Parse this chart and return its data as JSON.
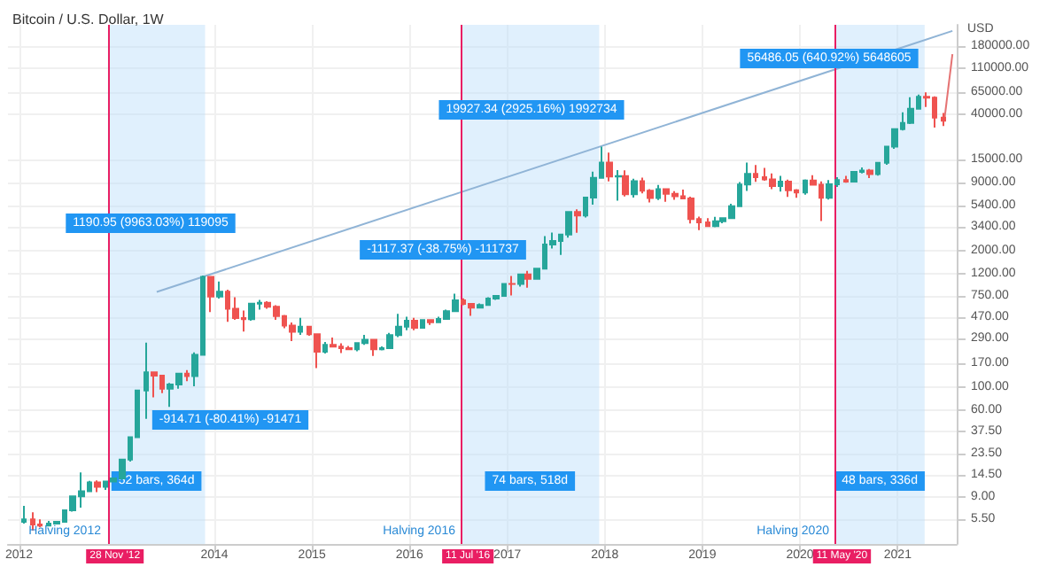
{
  "chart_data": {
    "type": "candlestick",
    "title": "Bitcoin / U.S. Dollar, 1W",
    "ylabel": "USD",
    "x": [
      "2012-01-20",
      "2012-02-20",
      "2012-03-20",
      "2012-04-20",
      "2012-05-20",
      "2012-06-20",
      "2012-07-20",
      "2012-08-20",
      "2012-09-20",
      "2012-10-20",
      "2012-11-20",
      "2012-12-20",
      "2013-01-20",
      "2013-02-20",
      "2013-03-20",
      "2013-04-20",
      "2013-05-20",
      "2013-06-20",
      "2013-07-20",
      "2013-08-20",
      "2013-09-20",
      "2013-10-20",
      "2013-11-20",
      "2013-12-20",
      "2014-01-20",
      "2014-02-20",
      "2014-03-20",
      "2014-04-20",
      "2014-05-20",
      "2014-06-20",
      "2014-07-20",
      "2014-08-20",
      "2014-09-20",
      "2014-10-20",
      "2014-11-20",
      "2014-12-20",
      "2015-01-20",
      "2015-02-20",
      "2015-03-20",
      "2015-04-20",
      "2015-05-20",
      "2015-06-20",
      "2015-07-20",
      "2015-08-20",
      "2015-09-20",
      "2015-10-20",
      "2015-11-20",
      "2015-12-20",
      "2016-01-20",
      "2016-02-20",
      "2016-03-20",
      "2016-04-20",
      "2016-05-20",
      "2016-06-20",
      "2016-07-20",
      "2016-08-20",
      "2016-09-20",
      "2016-10-20",
      "2016-11-20",
      "2016-12-20",
      "2017-01-20",
      "2017-02-20",
      "2017-03-20",
      "2017-04-20",
      "2017-05-20",
      "2017-06-20",
      "2017-07-20",
      "2017-08-20",
      "2017-09-20",
      "2017-10-20",
      "2017-11-20",
      "2017-12-20",
      "2018-01-20",
      "2018-02-20",
      "2018-03-20",
      "2018-04-20",
      "2018-05-20",
      "2018-06-20",
      "2018-07-20",
      "2018-08-20",
      "2018-09-20",
      "2018-10-20",
      "2018-11-20",
      "2018-12-20",
      "2019-01-20",
      "2019-02-20",
      "2019-03-20",
      "2019-04-20",
      "2019-05-20",
      "2019-06-20",
      "2019-07-20",
      "2019-08-20",
      "2019-09-20",
      "2019-10-20",
      "2019-11-20",
      "2019-12-20",
      "2020-01-20",
      "2020-02-20",
      "2020-03-20",
      "2020-04-20",
      "2020-05-20",
      "2020-06-20",
      "2020-07-20",
      "2020-08-20",
      "2020-09-20",
      "2020-10-20",
      "2020-11-20",
      "2020-12-20",
      "2021-01-20",
      "2021-02-20",
      "2021-03-20",
      "2021-04-20",
      "2021-05-20",
      "2021-06-20"
    ],
    "ohlc": [
      [
        5.2,
        7.4,
        5.0,
        5.5
      ],
      [
        5.5,
        6.4,
        4.3,
        4.9
      ],
      [
        4.9,
        5.5,
        4.6,
        4.8
      ],
      [
        4.8,
        5.3,
        4.7,
        5.0
      ],
      [
        5.0,
        5.2,
        4.9,
        5.2
      ],
      [
        5.2,
        6.8,
        5.1,
        6.7
      ],
      [
        6.7,
        9.2,
        6.5,
        9.1
      ],
      [
        9.1,
        15.4,
        7.1,
        10.2
      ],
      [
        10.2,
        12.8,
        10.0,
        12.4
      ],
      [
        12.4,
        12.9,
        10.0,
        11.2
      ],
      [
        11.2,
        12.8,
        10.5,
        12.6
      ],
      [
        12.6,
        13.8,
        12.4,
        13.5
      ],
      [
        13.5,
        20.8,
        13.2,
        20.4
      ],
      [
        20.4,
        33.5,
        19.5,
        33.4
      ],
      [
        33.4,
        95,
        33,
        93
      ],
      [
        93,
        266,
        50,
        139
      ],
      [
        139,
        140,
        80,
        129
      ],
      [
        129,
        130,
        88,
        97
      ],
      [
        97,
        110,
        65,
        106
      ],
      [
        106,
        136,
        97,
        135
      ],
      [
        135,
        146,
        114,
        128
      ],
      [
        128,
        215,
        102,
        204
      ],
      [
        204,
        1163,
        200,
        1129
      ],
      [
        1129,
        1152,
        520,
        732
      ],
      [
        732,
        1020,
        700,
        815
      ],
      [
        815,
        850,
        420,
        560
      ],
      [
        560,
        720,
        440,
        457
      ],
      [
        457,
        540,
        340,
        445
      ],
      [
        445,
        630,
        430,
        628
      ],
      [
        628,
        680,
        550,
        640
      ],
      [
        640,
        660,
        560,
        585
      ],
      [
        585,
        605,
        440,
        478
      ],
      [
        478,
        490,
        365,
        388
      ],
      [
        388,
        415,
        275,
        338
      ],
      [
        338,
        460,
        315,
        378
      ],
      [
        378,
        385,
        310,
        320
      ],
      [
        320,
        320,
        152,
        218
      ],
      [
        218,
        270,
        210,
        254
      ],
      [
        254,
        298,
        240,
        244
      ],
      [
        244,
        262,
        212,
        236
      ],
      [
        236,
        247,
        227,
        230
      ],
      [
        230,
        268,
        220,
        263
      ],
      [
        263,
        315,
        253,
        284
      ],
      [
        284,
        285,
        199,
        230
      ],
      [
        230,
        245,
        225,
        236
      ],
      [
        236,
        330,
        235,
        314
      ],
      [
        314,
        500,
        300,
        377
      ],
      [
        377,
        470,
        350,
        430
      ],
      [
        430,
        460,
        350,
        368
      ],
      [
        368,
        445,
        365,
        437
      ],
      [
        437,
        440,
        393,
        416
      ],
      [
        416,
        470,
        415,
        448
      ],
      [
        448,
        550,
        440,
        531
      ],
      [
        531,
        780,
        530,
        673
      ],
      [
        673,
        705,
        605,
        624
      ],
      [
        624,
        625,
        480,
        575
      ],
      [
        575,
        630,
        570,
        609
      ],
      [
        609,
        720,
        605,
        700
      ],
      [
        700,
        755,
        680,
        742
      ],
      [
        742,
        975,
        740,
        966
      ],
      [
        966,
        1150,
        750,
        965
      ],
      [
        965,
        1200,
        910,
        1190
      ],
      [
        1190,
        1290,
        890,
        1080
      ],
      [
        1080,
        1350,
        1060,
        1348
      ],
      [
        1348,
        2760,
        1340,
        2300
      ],
      [
        2300,
        2990,
        2100,
        2480
      ],
      [
        2480,
        2920,
        1830,
        2860
      ],
      [
        2860,
        4750,
        2670,
        4700
      ],
      [
        4700,
        4980,
        2970,
        4340
      ],
      [
        4340,
        6470,
        4160,
        6440
      ],
      [
        6440,
        11400,
        5500,
        9950
      ],
      [
        9950,
        19670,
        9900,
        13860
      ],
      [
        13860,
        17250,
        9200,
        10220
      ],
      [
        10220,
        11790,
        6000,
        10320
      ],
      [
        10320,
        11700,
        6600,
        6930
      ],
      [
        6930,
        9750,
        6430,
        9240
      ],
      [
        9240,
        9990,
        7060,
        7500
      ],
      [
        7500,
        7760,
        5780,
        6390
      ],
      [
        6390,
        8500,
        6090,
        7730
      ],
      [
        7730,
        7760,
        5880,
        7000
      ],
      [
        7000,
        7400,
        6120,
        6620
      ],
      [
        6620,
        7680,
        6200,
        6300
      ],
      [
        6300,
        6570,
        3650,
        4020
      ],
      [
        4020,
        4240,
        3150,
        3740
      ],
      [
        3740,
        4100,
        3370,
        3440
      ],
      [
        3440,
        4220,
        3350,
        3820
      ],
      [
        3820,
        4130,
        3670,
        4100
      ],
      [
        4100,
        5620,
        4090,
        5330
      ],
      [
        5330,
        9070,
        5320,
        8570
      ],
      [
        8570,
        13880,
        7450,
        10820
      ],
      [
        10820,
        13180,
        9080,
        10090
      ],
      [
        10090,
        12330,
        9330,
        9600
      ],
      [
        9600,
        10950,
        7730,
        8300
      ],
      [
        8300,
        10370,
        7330,
        9150
      ],
      [
        9150,
        9540,
        6520,
        7550
      ],
      [
        7550,
        7760,
        6420,
        7190
      ],
      [
        7190,
        9580,
        6860,
        9350
      ],
      [
        9350,
        10500,
        8440,
        8530
      ],
      [
        8530,
        9190,
        3850,
        6410
      ],
      [
        6410,
        9460,
        6150,
        8630
      ],
      [
        8630,
        10080,
        8120,
        9450
      ],
      [
        9450,
        10380,
        8920,
        9140
      ],
      [
        9140,
        11450,
        8960,
        11340
      ],
      [
        11340,
        12480,
        10960,
        11650
      ],
      [
        11650,
        12080,
        9880,
        10780
      ],
      [
        10780,
        14070,
        10410,
        13800
      ],
      [
        13800,
        19860,
        13200,
        19700
      ],
      [
        19700,
        29300,
        18760,
        28990
      ],
      [
        28990,
        41950,
        28130,
        33140
      ],
      [
        33140,
        58350,
        32300,
        45170
      ],
      [
        45170,
        61790,
        44960,
        58800
      ],
      [
        58800,
        64900,
        47050,
        57750
      ],
      [
        57750,
        59500,
        30000,
        37300
      ],
      [
        37300,
        41300,
        31000,
        34895
      ]
    ],
    "series": [
      {
        "type": "line",
        "color": "#90b4d6",
        "x": [
          "2013-05-30",
          "2021-07-25"
        ],
        "values": [
          810,
          250000
        ]
      },
      {
        "type": "line",
        "color": "#e57373",
        "x": [
          "2021-06-25",
          "2021-07-25"
        ],
        "values": [
          35600,
          150000
        ]
      }
    ],
    "log": "y",
    "grid": true,
    "xlim": [
      "2011-11-20",
      "2021-08-10"
    ],
    "xticks": [
      {
        "value": "2012",
        "label": "2012"
      },
      {
        "value": "2014",
        "label": "2014"
      },
      {
        "value": "2015",
        "label": "2015"
      },
      {
        "value": "2016",
        "label": "2016"
      },
      {
        "value": "2017",
        "label": "2017"
      },
      {
        "value": "2018",
        "label": "2018"
      },
      {
        "value": "2019",
        "label": "2019"
      },
      {
        "value": "2020",
        "label": "2020"
      },
      {
        "value": "2021",
        "label": "2021"
      }
    ],
    "ylim": [
      3.2,
      286000
    ],
    "yticks": [
      {
        "value": 5.5,
        "label": "5.50"
      },
      {
        "value": 9,
        "label": "9.00"
      },
      {
        "value": 14.5,
        "label": "14.50"
      },
      {
        "value": 23.5,
        "label": "23.50"
      },
      {
        "value": 37.5,
        "label": "37.50"
      },
      {
        "value": 60,
        "label": "60.00"
      },
      {
        "value": 100,
        "label": "100.00"
      },
      {
        "value": 170,
        "label": "170.00"
      },
      {
        "value": 290,
        "label": "290.00"
      },
      {
        "value": 470,
        "label": "470.00"
      },
      {
        "value": 750,
        "label": "750.00"
      },
      {
        "value": 1200,
        "label": "1200.00"
      },
      {
        "value": 2000,
        "label": "2000.00"
      },
      {
        "value": 3400,
        "label": "3400.00"
      },
      {
        "value": 5400,
        "label": "5400.00"
      },
      {
        "value": 9000,
        "label": "9000.00"
      },
      {
        "value": 15000,
        "label": "15000.00"
      },
      {
        "value": 40000,
        "label": "40000.00"
      },
      {
        "value": 65000,
        "label": "65000.00"
      },
      {
        "value": 110000,
        "label": "110000.00"
      },
      {
        "value": 180000,
        "label": "180000.00"
      }
    ],
    "ref_lines": [
      {
        "axis": "x",
        "value": "2012-11-28",
        "label": "28 Nov '12",
        "color": "#e91e63"
      },
      {
        "axis": "x",
        "value": "2016-07-11",
        "label": "11 Jul '16",
        "color": "#e91e63"
      },
      {
        "axis": "x",
        "value": "2020-05-11",
        "label": "11 May '20",
        "color": "#e91e63"
      }
    ],
    "bands": [
      {
        "axis": "x",
        "from": "2012-11-28",
        "to": "2013-11-27",
        "label": "52 bars, 364d",
        "color": "#bbdefb"
      },
      {
        "axis": "x",
        "from": "2016-07-11",
        "to": "2017-12-11",
        "label": "74 bars, 518d",
        "color": "#bbdefb"
      },
      {
        "axis": "x",
        "from": "2020-05-11",
        "to": "2021-04-12",
        "label": "48 bars, 336d",
        "color": "#bbdefb"
      }
    ],
    "annotations": [
      "1190.95 (9963.03%) 119095",
      "-914.71 (-80.41%) -91471",
      "19927.34 (2925.16%) 1992734",
      "-1117.37 (-38.75%) -111737",
      "56486.05 (640.92%) 5648605",
      "Halving 2012",
      "Halving 2016",
      "Halving 2020"
    ]
  }
}
